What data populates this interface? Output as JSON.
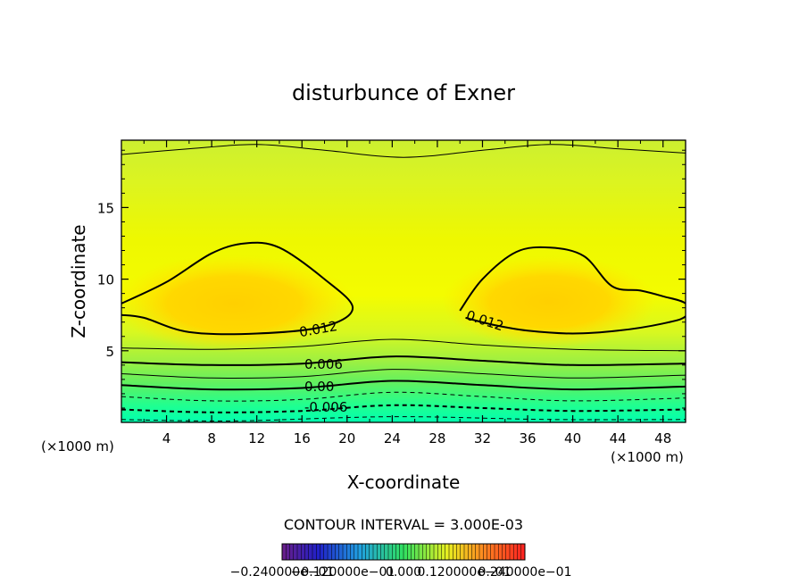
{
  "chart_data": {
    "type": "contour",
    "title": "disturbunce of Exner",
    "xlabel": "X-coordinate",
    "ylabel": "Z-coordinate",
    "x_unit_left": "(×1000 m)",
    "x_unit_right": "(×1000 m)",
    "xlim": [
      0,
      50
    ],
    "ylim": [
      0,
      19.7
    ],
    "x_ticks": [
      4,
      8,
      12,
      16,
      20,
      24,
      28,
      32,
      36,
      40,
      44,
      48
    ],
    "y_ticks": [
      5,
      10,
      15
    ],
    "contour_interval_text": "CONTOUR INTERVAL = 3.000E-03",
    "contour_labels": [
      "0.012",
      "0.012",
      "0.006",
      "0.00",
      "-0.006"
    ],
    "colorbar_labels": [
      "−0.240000e−01",
      "−0.120000e−01",
      "0.000",
      "0.120000e−01",
      "0.240000e−01"
    ],
    "colorbar_range": [
      -0.024,
      0.024
    ],
    "contours": [
      {
        "level": 0.012,
        "points": [
          [
            0,
            8.3
          ],
          [
            4,
            9.8
          ],
          [
            8,
            11.8
          ],
          [
            11,
            12.5
          ],
          [
            14,
            12.2
          ],
          [
            18,
            10.0
          ],
          [
            20.5,
            8.0
          ],
          [
            18,
            6.7
          ],
          [
            12,
            6.2
          ],
          [
            6,
            6.3
          ],
          [
            2,
            7.3
          ],
          [
            0,
            7.5
          ]
        ]
      },
      {
        "level": 0.012,
        "points": [
          [
            30,
            7.8
          ],
          [
            32,
            10.0
          ],
          [
            35,
            11.9
          ],
          [
            38,
            12.2
          ],
          [
            41,
            11.6
          ],
          [
            43.5,
            9.5
          ],
          [
            46,
            9.2
          ],
          [
            48,
            8.8
          ],
          [
            50,
            8.3
          ],
          [
            50,
            7.4
          ],
          [
            48,
            6.9
          ],
          [
            44,
            6.4
          ],
          [
            40,
            6.2
          ],
          [
            36,
            6.4
          ],
          [
            33,
            6.8
          ],
          [
            30.5,
            7.3
          ]
        ]
      }
    ],
    "lines": [
      {
        "level": 0.009,
        "style": "thin",
        "points": [
          [
            0,
            18.7
          ],
          [
            6,
            19.1
          ],
          [
            12,
            19.4
          ],
          [
            18,
            19.0
          ],
          [
            25,
            18.5
          ],
          [
            32,
            19.0
          ],
          [
            38,
            19.4
          ],
          [
            44,
            19.1
          ],
          [
            50,
            18.8
          ]
        ]
      },
      {
        "level": 0.009,
        "style": "thin",
        "points": [
          [
            0,
            5.2
          ],
          [
            8,
            5.1
          ],
          [
            16,
            5.3
          ],
          [
            24,
            5.8
          ],
          [
            32,
            5.4
          ],
          [
            40,
            5.1
          ],
          [
            50,
            5.0
          ]
        ]
      },
      {
        "level": 0.006,
        "style": "thick",
        "points": [
          [
            0,
            4.2
          ],
          [
            8,
            4.0
          ],
          [
            16,
            4.1
          ],
          [
            24,
            4.6
          ],
          [
            32,
            4.3
          ],
          [
            40,
            4.0
          ],
          [
            50,
            4.1
          ]
        ]
      },
      {
        "level": 0.003,
        "style": "thin",
        "points": [
          [
            0,
            3.4
          ],
          [
            8,
            3.1
          ],
          [
            16,
            3.2
          ],
          [
            24,
            3.7
          ],
          [
            32,
            3.4
          ],
          [
            40,
            3.1
          ],
          [
            50,
            3.3
          ]
        ]
      },
      {
        "level": 0.0,
        "style": "thick",
        "points": [
          [
            0,
            2.6
          ],
          [
            8,
            2.3
          ],
          [
            16,
            2.4
          ],
          [
            24,
            2.9
          ],
          [
            32,
            2.6
          ],
          [
            40,
            2.3
          ],
          [
            50,
            2.5
          ]
        ]
      },
      {
        "level": -0.003,
        "style": "dashed",
        "points": [
          [
            0,
            1.8
          ],
          [
            8,
            1.5
          ],
          [
            16,
            1.6
          ],
          [
            24,
            2.1
          ],
          [
            32,
            1.8
          ],
          [
            40,
            1.5
          ],
          [
            50,
            1.7
          ]
        ]
      },
      {
        "level": -0.006,
        "style": "dashed-thick",
        "points": [
          [
            0,
            0.9
          ],
          [
            8,
            0.7
          ],
          [
            16,
            0.8
          ],
          [
            24,
            1.2
          ],
          [
            32,
            1.0
          ],
          [
            40,
            0.8
          ],
          [
            50,
            0.9
          ]
        ]
      },
      {
        "level": -0.009,
        "style": "dashed",
        "points": [
          [
            0,
            0.2
          ],
          [
            10,
            0.1
          ],
          [
            24,
            0.4
          ],
          [
            38,
            0.2
          ],
          [
            50,
            0.2
          ]
        ]
      }
    ]
  }
}
